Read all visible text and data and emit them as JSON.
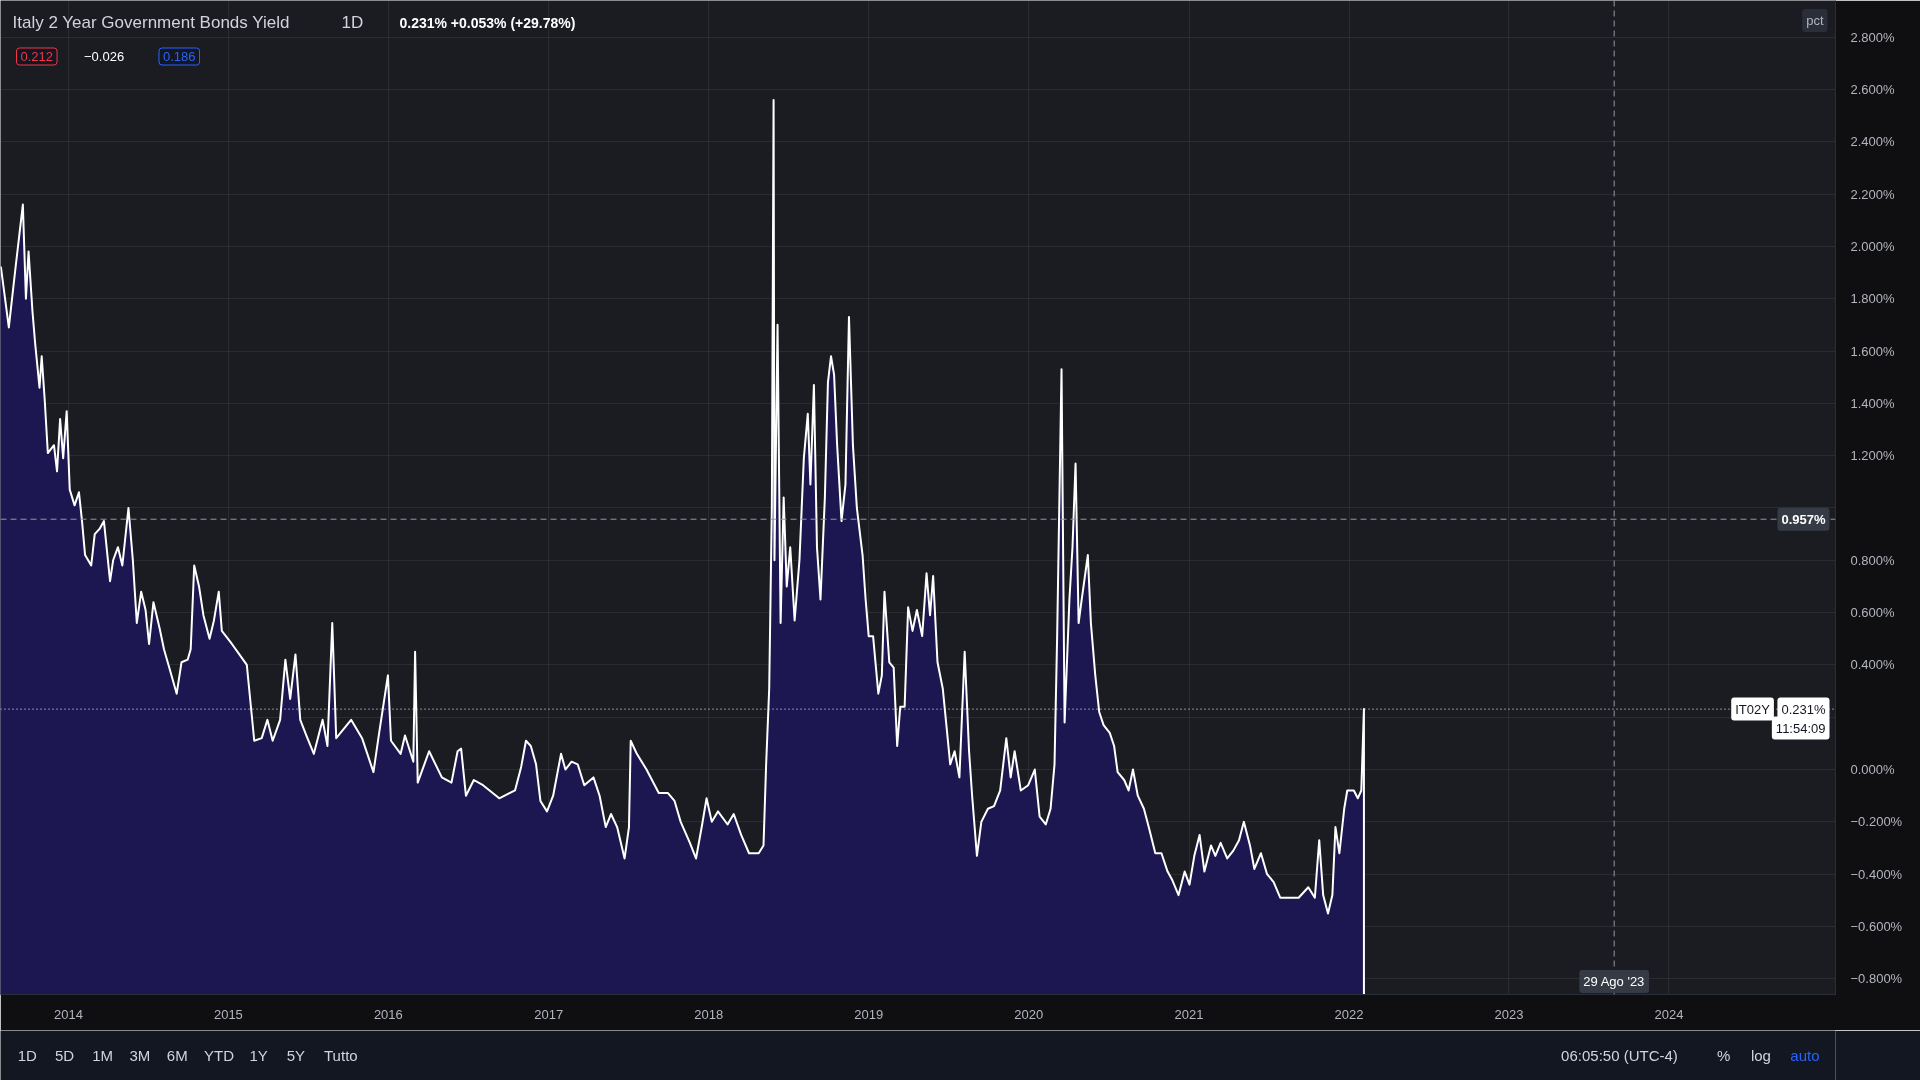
{
  "chart_data": {
    "type": "area",
    "title": "Italy 2 Year Government Bonds Yield",
    "subtitle": "1D",
    "color": "#1c1750",
    "x": [
      "2013-07-31",
      "2013-08-18",
      "2013-09-01",
      "2013-09-19",
      "2013-09-26",
      "2013-10-02",
      "2013-10-11",
      "2013-10-17",
      "2013-10-27",
      "2013-11-01",
      "2013-11-08",
      "2013-11-15",
      "2013-11-29",
      "2013-12-06",
      "2013-12-13",
      "2013-12-20",
      "2013-12-28",
      "2014-01-04",
      "2014-01-15",
      "2014-01-25",
      "2014-02-01",
      "2014-02-08",
      "2014-02-22",
      "2014-03-02",
      "2014-03-13",
      "2014-03-23",
      "2014-04-06",
      "2014-04-13",
      "2014-04-24",
      "2014-05-04",
      "2014-05-18",
      "2014-05-28",
      "2014-06-06",
      "2014-06-16",
      "2014-06-26",
      "2014-07-04",
      "2014-07-14",
      "2014-07-28",
      "2014-08-07",
      "2014-08-19",
      "2014-09-05",
      "2014-09-16",
      "2014-09-30",
      "2014-10-07",
      "2014-10-15",
      "2014-10-26",
      "2014-11-05",
      "2014-11-19",
      "2014-11-29",
      "2014-12-10",
      "2014-12-17",
      "2015-01-09",
      "2015-01-26",
      "2015-02-12",
      "2015-03-01",
      "2015-03-18",
      "2015-03-31",
      "2015-04-12",
      "2015-04-29",
      "2015-05-11",
      "2015-05-22",
      "2015-06-03",
      "2015-06-14",
      "2015-06-28",
      "2015-07-15",
      "2015-08-04",
      "2015-08-15",
      "2015-08-26",
      "2015-09-04",
      "2015-10-08",
      "2015-11-02",
      "2015-11-28",
      "2015-12-11",
      "2015-12-31",
      "2016-01-07",
      "2016-01-29",
      "2016-02-08",
      "2016-02-27",
      "2016-03-02",
      "2016-03-08",
      "2016-04-03",
      "2016-05-02",
      "2016-05-24",
      "2016-06-07",
      "2016-06-15",
      "2016-06-26",
      "2016-07-14",
      "2016-08-04",
      "2016-09-10",
      "2016-10-16",
      "2016-10-30",
      "2016-11-10",
      "2016-11-21",
      "2016-12-03",
      "2016-12-13",
      "2016-12-28",
      "2017-01-11",
      "2017-01-29",
      "2017-02-08",
      "2017-02-22",
      "2017-03-08",
      "2017-03-23",
      "2017-04-13",
      "2017-04-27",
      "2017-05-11",
      "2017-05-23",
      "2017-06-06",
      "2017-06-23",
      "2017-07-03",
      "2017-07-07",
      "2017-07-21",
      "2017-08-12",
      "2017-09-09",
      "2017-09-30",
      "2017-10-15",
      "2017-10-29",
      "2017-11-19",
      "2017-12-03",
      "2017-12-17",
      "2017-12-27",
      "2018-01-08",
      "2018-01-22",
      "2018-02-13",
      "2018-02-27",
      "2018-03-16",
      "2018-04-03",
      "2018-04-25",
      "2018-05-06",
      "2018-05-12",
      "2018-05-19",
      "2018-05-25",
      "2018-05-29",
      "2018-05-31",
      "2018-06-07",
      "2018-06-14",
      "2018-06-21",
      "2018-06-28",
      "2018-07-06",
      "2018-07-16",
      "2018-07-27",
      "2018-08-06",
      "2018-08-15",
      "2018-08-21",
      "2018-08-29",
      "2018-09-05",
      "2018-09-13",
      "2018-09-23",
      "2018-09-30",
      "2018-10-07",
      "2018-10-14",
      "2018-10-21",
      "2018-10-31",
      "2018-11-09",
      "2018-11-17",
      "2018-11-26",
      "2018-12-05",
      "2018-12-18",
      "2018-12-25",
      "2019-01-01",
      "2019-01-11",
      "2019-01-23",
      "2019-01-31",
      "2019-02-06",
      "2019-02-17",
      "2019-02-27",
      "2019-03-07",
      "2019-03-14",
      "2019-03-24",
      "2019-04-01",
      "2019-04-11",
      "2019-04-21",
      "2019-05-03",
      "2019-05-13",
      "2019-05-21",
      "2019-05-28",
      "2019-06-07",
      "2019-06-19",
      "2019-06-29",
      "2019-07-06",
      "2019-07-16",
      "2019-07-27",
      "2019-08-08",
      "2019-08-18",
      "2019-08-25",
      "2019-09-05",
      "2019-09-15",
      "2019-09-30",
      "2019-10-14",
      "2019-10-28",
      "2019-11-11",
      "2019-11-21",
      "2019-11-30",
      "2019-12-14",
      "2019-12-31",
      "2020-01-15",
      "2020-01-26",
      "2020-02-09",
      "2020-02-20",
      "2020-02-29",
      "2020-03-06",
      "2020-03-16",
      "2020-03-23",
      "2020-04-03",
      "2020-04-10",
      "2020-04-17",
      "2020-04-24",
      "2020-05-01",
      "2020-05-15",
      "2020-05-22",
      "2020-06-01",
      "2020-06-10",
      "2020-06-20",
      "2020-07-04",
      "2020-07-14",
      "2020-07-22",
      "2020-08-06",
      "2020-08-16",
      "2020-08-26",
      "2020-09-06",
      "2020-09-20",
      "2020-10-01",
      "2020-10-16",
      "2020-10-30",
      "2020-11-13",
      "2020-11-23",
      "2020-12-08",
      "2020-12-22",
      "2021-01-02",
      "2021-01-13",
      "2021-01-25",
      "2021-02-05",
      "2021-02-20",
      "2021-03-02",
      "2021-03-14",
      "2021-03-29",
      "2021-04-12",
      "2021-04-25",
      "2021-05-06",
      "2021-05-20",
      "2021-05-30",
      "2021-06-14",
      "2021-06-28",
      "2021-07-13",
      "2021-07-28",
      "2021-08-17",
      "2021-09-08",
      "2021-09-30",
      "2021-10-15",
      "2021-10-25",
      "2021-11-03",
      "2021-11-14",
      "2021-11-24",
      "2021-12-01",
      "2021-12-10",
      "2021-12-21",
      "2021-12-28",
      "2022-01-12",
      "2022-01-21",
      "2022-01-29",
      "2022-02-04"
    ],
    "values": [
      1.92,
      1.69,
      1.9,
      2.16,
      1.8,
      1.98,
      1.75,
      1.63,
      1.46,
      1.58,
      1.41,
      1.21,
      1.24,
      1.14,
      1.34,
      1.19,
      1.37,
      1.07,
      1.01,
      1.06,
      0.95,
      0.82,
      0.78,
      0.9,
      0.92,
      0.95,
      0.72,
      0.8,
      0.85,
      0.78,
      1.0,
      0.8,
      0.56,
      0.68,
      0.61,
      0.48,
      0.64,
      0.54,
      0.46,
      0.39,
      0.29,
      0.41,
      0.42,
      0.46,
      0.78,
      0.7,
      0.59,
      0.5,
      0.57,
      0.68,
      0.53,
      0.48,
      0.44,
      0.4,
      0.11,
      0.12,
      0.19,
      0.11,
      0.19,
      0.42,
      0.27,
      0.44,
      0.19,
      0.13,
      0.06,
      0.19,
      0.09,
      0.56,
      0.12,
      0.19,
      0.12,
      -0.01,
      0.14,
      0.36,
      0.11,
      0.06,
      0.13,
      0.03,
      0.45,
      -0.05,
      0.07,
      -0.03,
      -0.05,
      0.07,
      0.08,
      -0.1,
      -0.04,
      -0.06,
      -0.11,
      -0.08,
      0.01,
      0.11,
      0.09,
      0.02,
      -0.12,
      -0.16,
      -0.1,
      0.06,
      0.0,
      0.03,
      0.02,
      -0.06,
      -0.03,
      -0.1,
      -0.22,
      -0.17,
      -0.22,
      -0.34,
      -0.22,
      0.11,
      0.06,
      0.0,
      -0.09,
      -0.09,
      -0.12,
      -0.2,
      -0.28,
      -0.34,
      -0.21,
      -0.11,
      -0.2,
      -0.16,
      -0.21,
      -0.17,
      -0.25,
      -0.32,
      -0.32,
      -0.29,
      0.02,
      0.31,
      1.0,
      2.56,
      0.8,
      1.7,
      0.56,
      1.04,
      0.7,
      0.85,
      0.57,
      0.8,
      1.19,
      1.36,
      1.09,
      1.47,
      0.85,
      0.65,
      1.04,
      1.48,
      1.58,
      1.51,
      1.24,
      0.95,
      1.09,
      1.73,
      1.24,
      1.0,
      0.82,
      0.65,
      0.51,
      0.51,
      0.29,
      0.36,
      0.68,
      0.41,
      0.39,
      0.09,
      0.24,
      0.24,
      0.62,
      0.53,
      0.61,
      0.51,
      0.75,
      0.59,
      0.74,
      0.41,
      0.31,
      0.14,
      0.02,
      0.07,
      -0.03,
      0.45,
      0.07,
      -0.1,
      -0.33,
      -0.2,
      -0.15,
      -0.14,
      -0.08,
      0.12,
      -0.03,
      0.07,
      -0.08,
      -0.06,
      0.0,
      -0.18,
      -0.21,
      -0.15,
      0.02,
      0.51,
      1.53,
      0.18,
      0.65,
      0.85,
      1.17,
      0.56,
      0.65,
      0.82,
      0.56,
      0.36,
      0.22,
      0.17,
      0.14,
      0.09,
      -0.01,
      -0.04,
      -0.08,
      0.0,
      -0.1,
      -0.15,
      -0.22,
      -0.32,
      -0.32,
      -0.39,
      -0.42,
      -0.48,
      -0.39,
      -0.44,
      -0.33,
      -0.25,
      -0.39,
      -0.29,
      -0.33,
      -0.28,
      -0.34,
      -0.31,
      -0.27,
      -0.2,
      -0.29,
      -0.38,
      -0.32,
      -0.4,
      -0.43,
      -0.49,
      -0.49,
      -0.49,
      -0.45,
      -0.49,
      -0.27,
      -0.48,
      -0.55,
      -0.48,
      -0.22,
      -0.32,
      -0.15,
      -0.08,
      -0.08,
      -0.11,
      -0.08,
      0.231
    ],
    "xlim": [
      "2013-07-30",
      "2025-01-15"
    ],
    "ylim": [
      -0.86,
      2.94
    ],
    "xticks": [
      {
        "value": "2014",
        "label": "2014"
      },
      {
        "value": "2015",
        "label": "2015"
      },
      {
        "value": "2016",
        "label": "2016"
      },
      {
        "value": "2017",
        "label": "2017"
      },
      {
        "value": "2018",
        "label": "2018"
      },
      {
        "value": "2019",
        "label": "2019"
      },
      {
        "value": "2020",
        "label": "2020"
      },
      {
        "value": "2021",
        "label": "2021"
      },
      {
        "value": "2022",
        "label": "2022"
      },
      {
        "value": "2023",
        "label": "2023"
      },
      {
        "value": "2024",
        "label": "2024"
      }
    ],
    "yticks": [
      {
        "value": -0.8,
        "label": "−0.800%"
      },
      {
        "value": -0.6,
        "label": "−0.600%"
      },
      {
        "value": -0.4,
        "label": "−0.400%"
      },
      {
        "value": -0.2,
        "label": "−0.200%"
      },
      {
        "value": 0,
        "label": "0.000%"
      },
      {
        "value": 0.2,
        "label": null
      },
      {
        "value": 0.4,
        "label": "0.400%"
      },
      {
        "value": 0.6,
        "label": "0.600%"
      },
      {
        "value": 0.8,
        "label": "0.800%"
      },
      {
        "value": 1.0,
        "label": null
      },
      {
        "value": 1.2,
        "label": "1.200%"
      },
      {
        "value": 1.4,
        "label": "1.400%"
      },
      {
        "value": 1.6,
        "label": "1.600%"
      },
      {
        "value": 1.8,
        "label": "1.800%"
      },
      {
        "value": 2.0,
        "label": "2.000%"
      },
      {
        "value": 2.2,
        "label": "2.200%"
      },
      {
        "value": 2.4,
        "label": "2.400%"
      },
      {
        "value": 2.6,
        "label": "2.600%"
      },
      {
        "value": 2.8,
        "label": "2.800%"
      }
    ],
    "grid": true,
    "ref_lines": [
      {
        "axis": "y",
        "value": 0.231,
        "label": "0.231%",
        "line_style": "dotted",
        "color": "#ffffff"
      },
      {
        "axis": "y",
        "value": 0.957,
        "label": "0.957%",
        "line_style": "dashed",
        "color": "#9598a1"
      },
      {
        "axis": "x",
        "value": "2023-08-29",
        "label": "29 Ago '23",
        "line_style": "dashed",
        "color": "#9598a1"
      }
    ],
    "annotations": [
      "0.231% +0.053% (+29.78%)",
      "0.212",
      "−0.026",
      "0.186",
      "pct",
      "11:54:09",
      {
        "text": "IT02Y",
        "x": "2024-09-01",
        "y": 0.231
      },
      "1D",
      "5D",
      "1M",
      "3M",
      "6M",
      "YTD",
      "1Y",
      "5Y",
      "Tutto",
      "06:05:50 (UTC-4)",
      "%",
      "log",
      "auto"
    ]
  }
}
